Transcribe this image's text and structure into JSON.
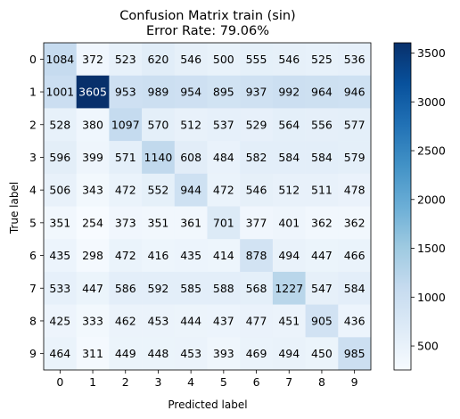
{
  "chart_data": {
    "type": "heatmap",
    "title_line1": "Confusion Matrix  train (sin)",
    "title_line2": "Error Rate: 79.06%",
    "xlabel": "Predicted label",
    "ylabel": "True label",
    "x_categories": [
      "0",
      "1",
      "2",
      "3",
      "4",
      "5",
      "6",
      "7",
      "8",
      "9"
    ],
    "y_categories": [
      "0",
      "1",
      "2",
      "3",
      "4",
      "5",
      "6",
      "7",
      "8",
      "9"
    ],
    "values": [
      [
        1084,
        372,
        523,
        620,
        546,
        500,
        555,
        546,
        525,
        536
      ],
      [
        1001,
        3605,
        953,
        989,
        954,
        895,
        937,
        992,
        964,
        946
      ],
      [
        528,
        380,
        1097,
        570,
        512,
        537,
        529,
        564,
        556,
        577
      ],
      [
        596,
        399,
        571,
        1140,
        608,
        484,
        582,
        584,
        584,
        579
      ],
      [
        506,
        343,
        472,
        552,
        944,
        472,
        546,
        512,
        511,
        478
      ],
      [
        351,
        254,
        373,
        351,
        361,
        701,
        377,
        401,
        362,
        362
      ],
      [
        435,
        298,
        472,
        416,
        435,
        414,
        878,
        494,
        447,
        466
      ],
      [
        533,
        447,
        586,
        592,
        585,
        588,
        568,
        1227,
        547,
        584
      ],
      [
        425,
        333,
        462,
        453,
        444,
        437,
        477,
        451,
        905,
        436
      ],
      [
        464,
        311,
        449,
        448,
        453,
        393,
        469,
        494,
        450,
        985
      ]
    ],
    "colormap": "Blues",
    "colorbar": {
      "min": 254,
      "max": 3605,
      "ticks": [
        500,
        1000,
        1500,
        2000,
        2500,
        3000,
        3500
      ]
    },
    "text_threshold": 1929.5
  }
}
